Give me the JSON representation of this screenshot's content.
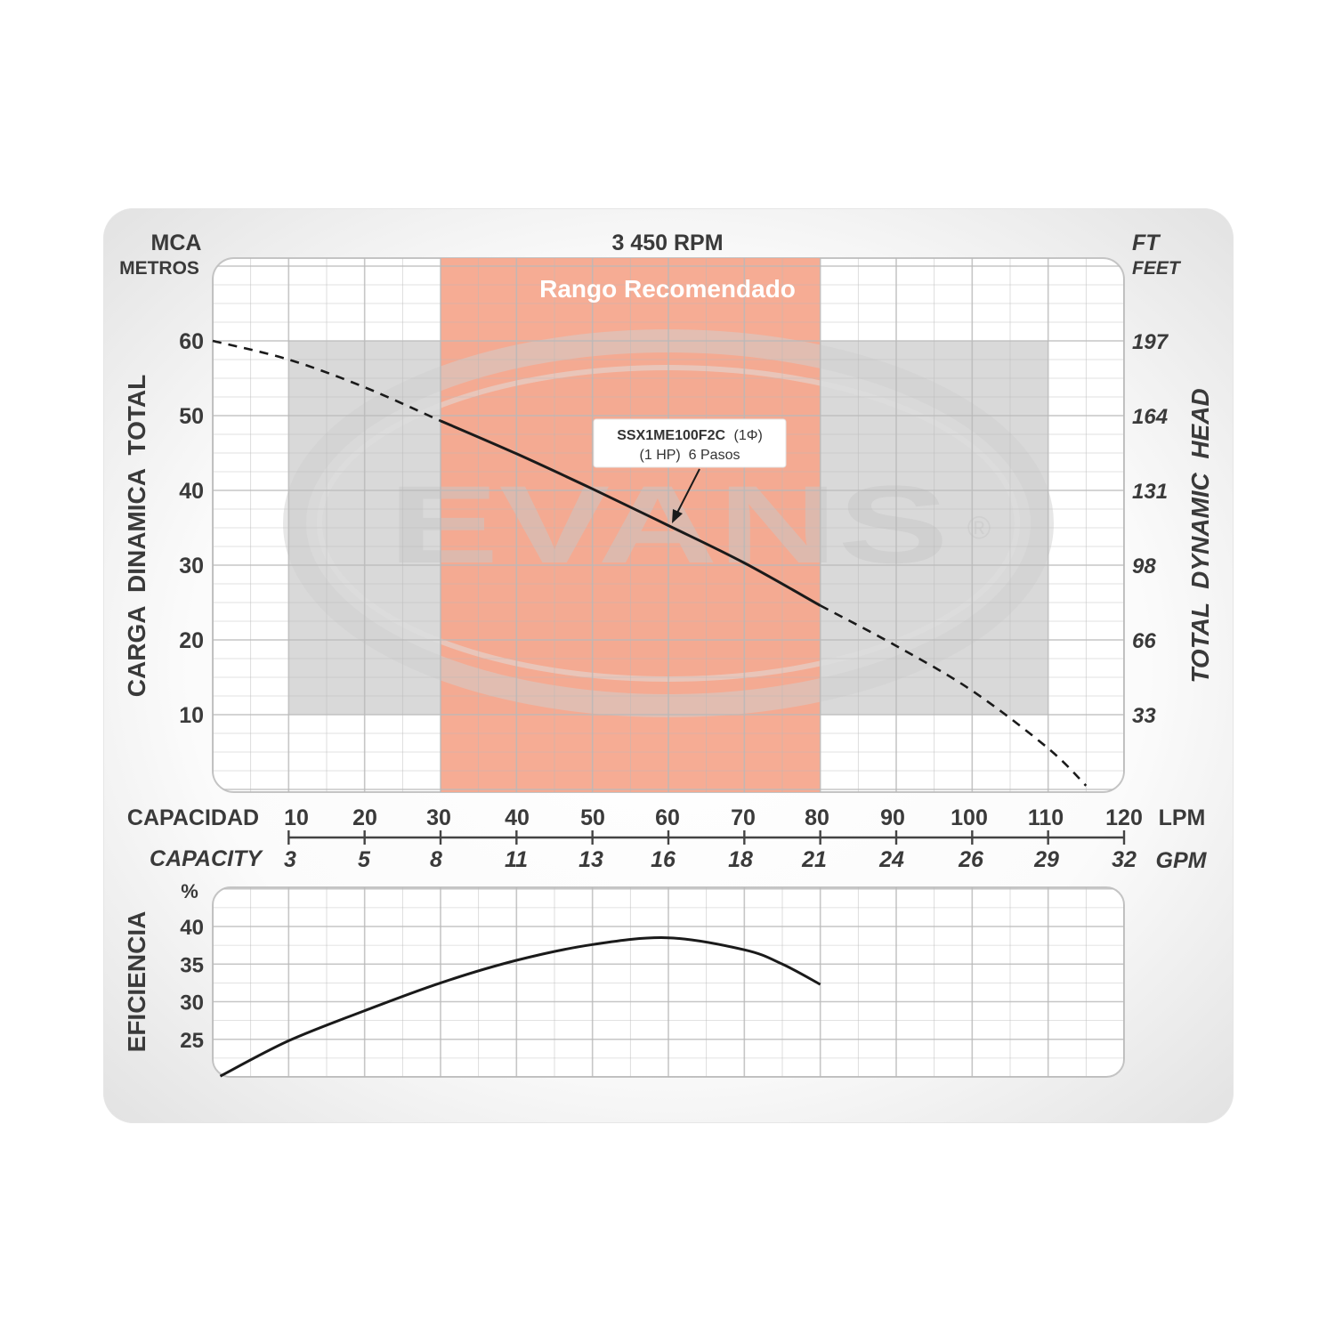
{
  "brand": {
    "watermark": "EVANS",
    "registered_mark": "®"
  },
  "chart_data": [
    {
      "type": "line",
      "title": "3 450 RPM",
      "region_label": "Rango Recomendado",
      "recommended_range_lpm": [
        30,
        80
      ],
      "colors": {
        "recommended_fill": "#f6a88e",
        "shadow_fill": "#d5d5d5",
        "curve": "#1a1a1a",
        "grid": "#c9c9c9",
        "text": "#3a3a3a",
        "annotation_box": "#ffffff"
      },
      "grid": true,
      "y_axis_left": {
        "unit_title": "MCA",
        "unit_subtitle": "METROS",
        "label": "CARGA  DINAMICA  TOTAL",
        "ticks": [
          10,
          20,
          30,
          40,
          50,
          60
        ],
        "range": [
          0,
          71
        ]
      },
      "y_axis_right": {
        "unit_title": "FT",
        "unit_subtitle": "FEET",
        "label": "TOTAL  DYNAMIC  HEAD",
        "tick_labels": [
          "33",
          "66",
          "98",
          "131",
          "164",
          "197"
        ]
      },
      "x_axis": {
        "label": "CAPACIDAD",
        "label_alt": "CAPACITY",
        "unit": "LPM",
        "unit_alt": "GPM",
        "range": [
          0,
          120
        ],
        "lpm_ticks": [
          "10",
          "20",
          "30",
          "40",
          "50",
          "60",
          "70",
          "80",
          "90",
          "100",
          "110",
          "120"
        ],
        "gpm_ticks": [
          "3",
          "5",
          "8",
          "11",
          "13",
          "16",
          "18",
          "21",
          "24",
          "26",
          "29",
          "32"
        ]
      },
      "series": [
        {
          "name": "SSX1ME100F2C",
          "annotation_name": "SSX1ME100F2C",
          "annotation_phase": "(1Φ)",
          "annotation_detail": "(1 HP)  6 Pasos",
          "x": [
            0,
            10,
            20,
            30,
            40,
            50,
            60,
            70,
            80,
            90,
            100,
            110,
            115
          ],
          "y": [
            60,
            57.5,
            53.8,
            49.3,
            44.9,
            40.2,
            35.3,
            30.3,
            24.6,
            19.2,
            13.2,
            5.5,
            0.5
          ],
          "solid_range": [
            30,
            80
          ]
        }
      ]
    },
    {
      "type": "line",
      "y_axis": {
        "unit": "%",
        "label": "EFICIENCIA",
        "ticks": [
          25,
          30,
          35,
          40
        ],
        "range": [
          20,
          45
        ]
      },
      "x_axis": {
        "range": [
          0,
          120
        ]
      },
      "grid": true,
      "series": [
        {
          "x": [
            1,
            10,
            20,
            30,
            40,
            50,
            60,
            70,
            75,
            80
          ],
          "y": [
            20.1,
            24.8,
            28.8,
            32.5,
            35.5,
            37.6,
            38.5,
            36.9,
            35.0,
            32.3
          ]
        }
      ]
    }
  ]
}
